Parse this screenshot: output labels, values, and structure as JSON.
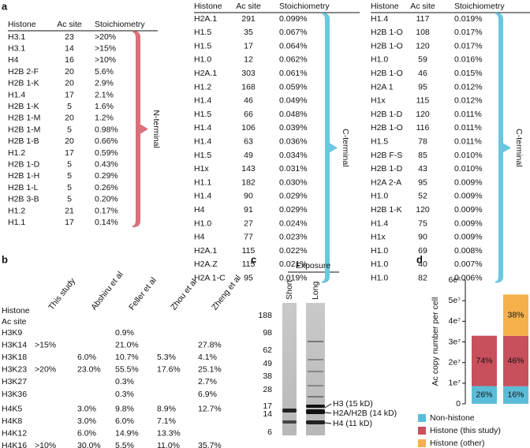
{
  "panel_a": {
    "label": "a",
    "columns": [
      "Histone",
      "Ac site",
      "Stoichiometry"
    ],
    "tables": [
      {
        "bracket": "N-terminal",
        "rows": [
          [
            "H3.1",
            23,
            ">20%"
          ],
          [
            "H3.1",
            14,
            ">15%"
          ],
          [
            "H4",
            16,
            ">10%"
          ],
          [
            "H2B 2-F",
            20,
            "5.6%"
          ],
          [
            "H2B 1-K",
            20,
            "2.9%"
          ],
          [
            "H1.4",
            17,
            "2.1%"
          ],
          [
            "H2B 1-K",
            5,
            "1.6%"
          ],
          [
            "H2B 1-M",
            20,
            "1.2%"
          ],
          [
            "H2B 1-M",
            5,
            "0.98%"
          ],
          [
            "H2B 1-B",
            20,
            "0.66%"
          ],
          [
            "H1.2",
            17,
            "0.59%"
          ],
          [
            "H2B 1-D",
            5,
            "0.43%"
          ],
          [
            "H2B 1-H",
            5,
            "0.29%"
          ],
          [
            "H2B 1-L",
            5,
            "0.26%"
          ],
          [
            "H2B 3-B",
            5,
            "0.20%"
          ],
          [
            "H1.2",
            21,
            "0.17%"
          ],
          [
            "H1.1",
            17,
            "0.14%"
          ]
        ]
      },
      {
        "bracket": "C-terminal",
        "rows": [
          [
            "H2A.1",
            291,
            "0.099%"
          ],
          [
            "H1.5",
            35,
            "0.067%"
          ],
          [
            "H1.5",
            17,
            "0.064%"
          ],
          [
            "H1.0",
            12,
            "0.062%"
          ],
          [
            "H2A.1",
            303,
            "0.061%"
          ],
          [
            "H1.2",
            168,
            "0.059%"
          ],
          [
            "H1.4",
            46,
            "0.049%"
          ],
          [
            "H1.5",
            66,
            "0.048%"
          ],
          [
            "H1.4",
            106,
            "0.039%"
          ],
          [
            "H1.4",
            63,
            "0.036%"
          ],
          [
            "H1.5",
            49,
            "0.034%"
          ],
          [
            "H1x",
            143,
            "0.031%"
          ],
          [
            "H1.1",
            182,
            "0.030%"
          ],
          [
            "H1.4",
            90,
            "0.029%"
          ],
          [
            "H4",
            91,
            "0.029%"
          ],
          [
            "H1.0",
            27,
            "0.024%"
          ],
          [
            "H4",
            77,
            "0.023%"
          ],
          [
            "H2A.1",
            115,
            "0.022%"
          ],
          [
            "H2A.Z",
            115,
            "0.021%"
          ],
          [
            "H2A 1-C",
            95,
            "0.019%"
          ]
        ]
      },
      {
        "bracket": "C-terminal",
        "rows": [
          [
            "H1.4",
            117,
            "0.019%"
          ],
          [
            "H2B 1-O",
            108,
            "0.017%"
          ],
          [
            "H2B 1-O",
            120,
            "0.017%"
          ],
          [
            "H1.0",
            59,
            "0.016%"
          ],
          [
            "H2B 1-O",
            46,
            "0.015%"
          ],
          [
            "H2A 1",
            95,
            "0.012%"
          ],
          [
            "H1x",
            115,
            "0.012%"
          ],
          [
            "H2B 1-D",
            120,
            "0.011%"
          ],
          [
            "H2B 1-O",
            116,
            "0.011%"
          ],
          [
            "H1.5",
            78,
            "0.011%"
          ],
          [
            "H2B F-S",
            85,
            "0.010%"
          ],
          [
            "H2B 1-D",
            43,
            "0.010%"
          ],
          [
            "H2A 2-A",
            95,
            "0.009%"
          ],
          [
            "H1.0",
            52,
            "0.009%"
          ],
          [
            "H2B 1-K",
            120,
            "0.009%"
          ],
          [
            "H1.4",
            75,
            "0.009%"
          ],
          [
            "H1x",
            90,
            "0.009%"
          ],
          [
            "H1.0",
            69,
            "0.008%"
          ],
          [
            "H1.0",
            40,
            "0.007%"
          ],
          [
            "H1.0",
            82,
            "0.006%"
          ]
        ]
      }
    ]
  },
  "panel_b": {
    "label": "b",
    "row_header": [
      "Histone",
      "Ac site"
    ],
    "columns": [
      "This study",
      "Abshiru et al",
      "Feller et al",
      "Zhou et al",
      "Zheng et al"
    ],
    "groups": [
      [
        [
          "H3K9",
          null,
          null,
          "0.9%",
          null,
          null
        ],
        [
          "H3K14",
          ">15%",
          null,
          "21.0%",
          null,
          "27.8%"
        ],
        [
          "H3K18",
          null,
          "6.0%",
          "10.7%",
          "5.3%",
          "4.1%"
        ],
        [
          "H3K23",
          ">20%",
          "23.0%",
          "55.5%",
          "17.6%",
          "25.1%"
        ],
        [
          "H3K27",
          null,
          null,
          "0.3%",
          null,
          "2.7%"
        ],
        [
          "H3K36",
          null,
          null,
          "0.3%",
          null,
          "6.9%"
        ]
      ],
      [
        [
          "H4K5",
          null,
          "3.0%",
          "9.8%",
          "8.9%",
          "12.7%"
        ],
        [
          "H4K8",
          null,
          "3.0%",
          "6.0%",
          "7.1%",
          null
        ],
        [
          "H4K12",
          null,
          "6.0%",
          "14.9%",
          "13.3%",
          null
        ],
        [
          "H4K16",
          ">10%",
          "30.0%",
          "5.5%",
          "11.0%",
          "35.7%"
        ]
      ]
    ]
  },
  "panel_c": {
    "label": "c",
    "title": "Exposure",
    "lanes": [
      "Short",
      "Long"
    ],
    "markers": [
      "188",
      "98",
      "62",
      "49",
      "38",
      "28",
      "17",
      "14",
      "6"
    ],
    "bands": [
      "H3 (15 kD)",
      "H2A/H2B (14 kD)",
      "H4 (11 kD)"
    ]
  },
  "chart_data": {
    "type": "stacked_bar",
    "panel_label": "d",
    "ylabel": "Ac copy number per cell",
    "categories": [
      null,
      null
    ],
    "ylim": [
      0,
      60000000
    ],
    "yticks": [
      0,
      {
        "value": 10000000,
        "label": "1e⁷"
      },
      {
        "value": 20000000,
        "label": "2e⁷"
      },
      {
        "value": 30000000,
        "label": "3e⁷"
      },
      {
        "value": 40000000,
        "label": "4e⁷"
      },
      {
        "value": 50000000,
        "label": "5e⁷"
      },
      {
        "value": 60000000,
        "label": "6e⁷"
      }
    ],
    "series": [
      {
        "name": "Non-histone",
        "color": "#5bbcd8",
        "values": [
          8600000,
          8500000
        ],
        "share_labels": [
          "26%",
          "16%"
        ]
      },
      {
        "name": "Histone (this study)",
        "color": "#c8505c",
        "values": [
          24400000,
          24400000
        ],
        "share_labels": [
          "74%",
          "46%"
        ]
      },
      {
        "name": "Histone (other)",
        "color": "#f5b04c",
        "values": [
          null,
          20100000
        ],
        "share_labels": [
          null,
          "38%"
        ]
      }
    ]
  }
}
